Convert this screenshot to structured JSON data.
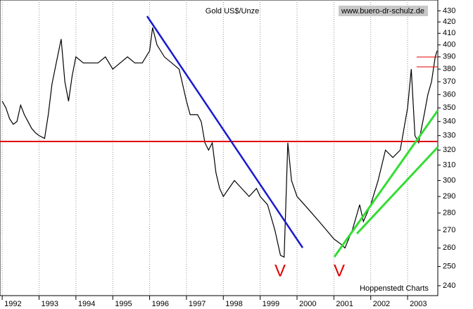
{
  "chart_data": {
    "type": "line",
    "title": "Gold US$/Unze",
    "annotations": [
      "www.buero-dr-schulz.de",
      "Hoppenstedt Charts",
      "V",
      "V"
    ],
    "log_scale": true,
    "xgrid": true,
    "xlim": [
      1991.94,
      2003.82
    ],
    "xticks": [
      1992,
      1993,
      1994,
      1995,
      1996,
      1997,
      1998,
      1999,
      2000,
      2001,
      2002,
      2003
    ],
    "ylim": [
      235,
      440
    ],
    "yticks": [
      240,
      250,
      260,
      270,
      280,
      290,
      300,
      310,
      320,
      330,
      340,
      350,
      360,
      370,
      380,
      390,
      400,
      410,
      420,
      430
    ],
    "x": [
      1992.0,
      1992.1,
      1992.2,
      1992.3,
      1992.4,
      1992.5,
      1992.6,
      1992.7,
      1992.8,
      1992.9,
      1993.0,
      1993.15,
      1993.25,
      1993.35,
      1993.5,
      1993.6,
      1993.7,
      1993.8,
      1993.9,
      1994.0,
      1994.2,
      1994.4,
      1994.6,
      1994.8,
      1995.0,
      1995.2,
      1995.4,
      1995.6,
      1995.8,
      1996.0,
      1996.08,
      1996.2,
      1996.4,
      1996.6,
      1996.8,
      1997.0,
      1997.1,
      1997.3,
      1997.4,
      1997.5,
      1997.6,
      1997.7,
      1997.8,
      1997.9,
      1998.0,
      1998.15,
      1998.3,
      1998.5,
      1998.7,
      1998.9,
      1999.0,
      1999.2,
      1999.4,
      1999.55,
      1999.65,
      1999.75,
      1999.85,
      2000.0,
      2000.2,
      2000.4,
      2000.6,
      2000.8,
      2001.0,
      2001.2,
      2001.3,
      2001.5,
      2001.7,
      2001.8,
      2002.0,
      2002.2,
      2002.4,
      2002.6,
      2002.8,
      2003.0,
      2003.1,
      2003.2,
      2003.3,
      2003.45,
      2003.55,
      2003.65,
      2003.75,
      2003.8
    ],
    "series": [
      {
        "name": "Gold",
        "color": "#000000",
        "values": [
          355,
          350,
          342,
          338,
          340,
          352,
          345,
          340,
          335,
          332,
          330,
          328,
          345,
          368,
          390,
          405,
          370,
          355,
          375,
          390,
          385,
          385,
          385,
          390,
          380,
          385,
          390,
          385,
          385,
          395,
          415,
          400,
          390,
          385,
          380,
          355,
          345,
          345,
          340,
          325,
          320,
          325,
          305,
          295,
          290,
          295,
          300,
          295,
          290,
          295,
          290,
          285,
          270,
          256,
          255,
          325,
          300,
          290,
          285,
          280,
          275,
          270,
          265,
          262,
          260,
          270,
          285,
          275,
          285,
          300,
          320,
          315,
          320,
          350,
          380,
          330,
          325,
          345,
          360,
          370,
          390,
          395
        ]
      }
    ]
  }
}
